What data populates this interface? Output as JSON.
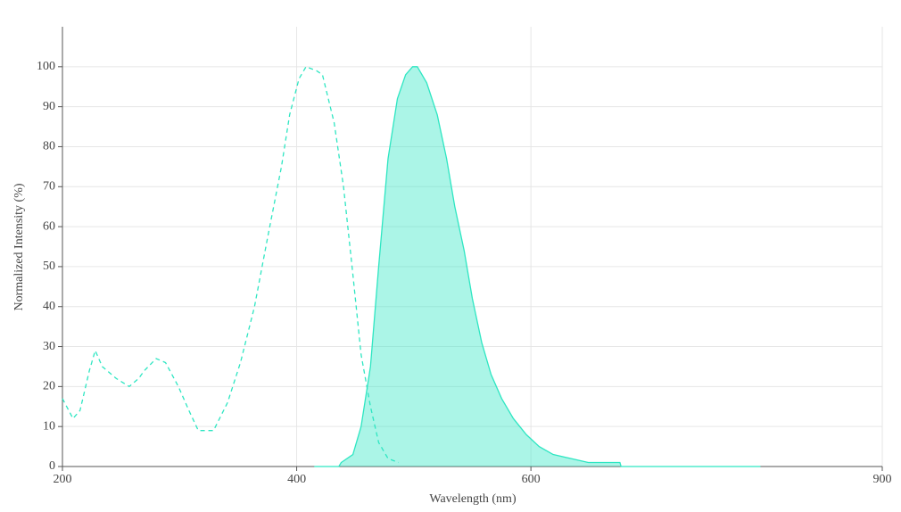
{
  "chart_data": {
    "type": "line",
    "x_label": "Wavelength (nm)",
    "y_label": "Normalized Intensity (%)",
    "xlim": [
      200,
      900
    ],
    "ylim": [
      0,
      110
    ],
    "xticks": [
      200,
      400,
      600,
      900
    ],
    "yticks": [
      0,
      10,
      20,
      30,
      40,
      50,
      60,
      70,
      80,
      90,
      100
    ],
    "grid": true,
    "series": [
      {
        "color": "#2ee6c2",
        "dashed": true,
        "filled": false,
        "x": [
          200,
          209,
          215,
          223,
          228,
          234,
          246,
          257,
          265,
          270,
          280,
          288,
          299,
          308,
          316,
          329,
          341,
          352,
          364,
          375,
          387,
          394,
          402,
          408,
          417,
          422,
          432,
          440,
          448,
          455,
          463,
          470,
          478,
          487
        ],
        "values": [
          17,
          12,
          14,
          24,
          29,
          25,
          22,
          20,
          22,
          24,
          27,
          26,
          20,
          14,
          9,
          9,
          16,
          26,
          40,
          57,
          75,
          88,
          97,
          100,
          99,
          98,
          86,
          70,
          48,
          28,
          15,
          6,
          2,
          1
        ]
      },
      {
        "color": "#2ee6c2",
        "dashed": false,
        "filled": true,
        "x": [
          415,
          436,
          438,
          448,
          455,
          463,
          470,
          478,
          486,
          493,
          499,
          503,
          511,
          520,
          528,
          535,
          543,
          550,
          558,
          566,
          575,
          585,
          596,
          607,
          619,
          634,
          649,
          676,
          677,
          796
        ],
        "values": [
          0,
          0,
          1,
          3,
          10,
          25,
          50,
          77,
          92,
          98,
          100,
          100,
          96,
          88,
          77,
          65,
          54,
          42,
          31,
          23,
          17,
          12,
          8,
          5,
          3,
          2,
          1,
          1,
          0,
          0
        ]
      }
    ]
  }
}
